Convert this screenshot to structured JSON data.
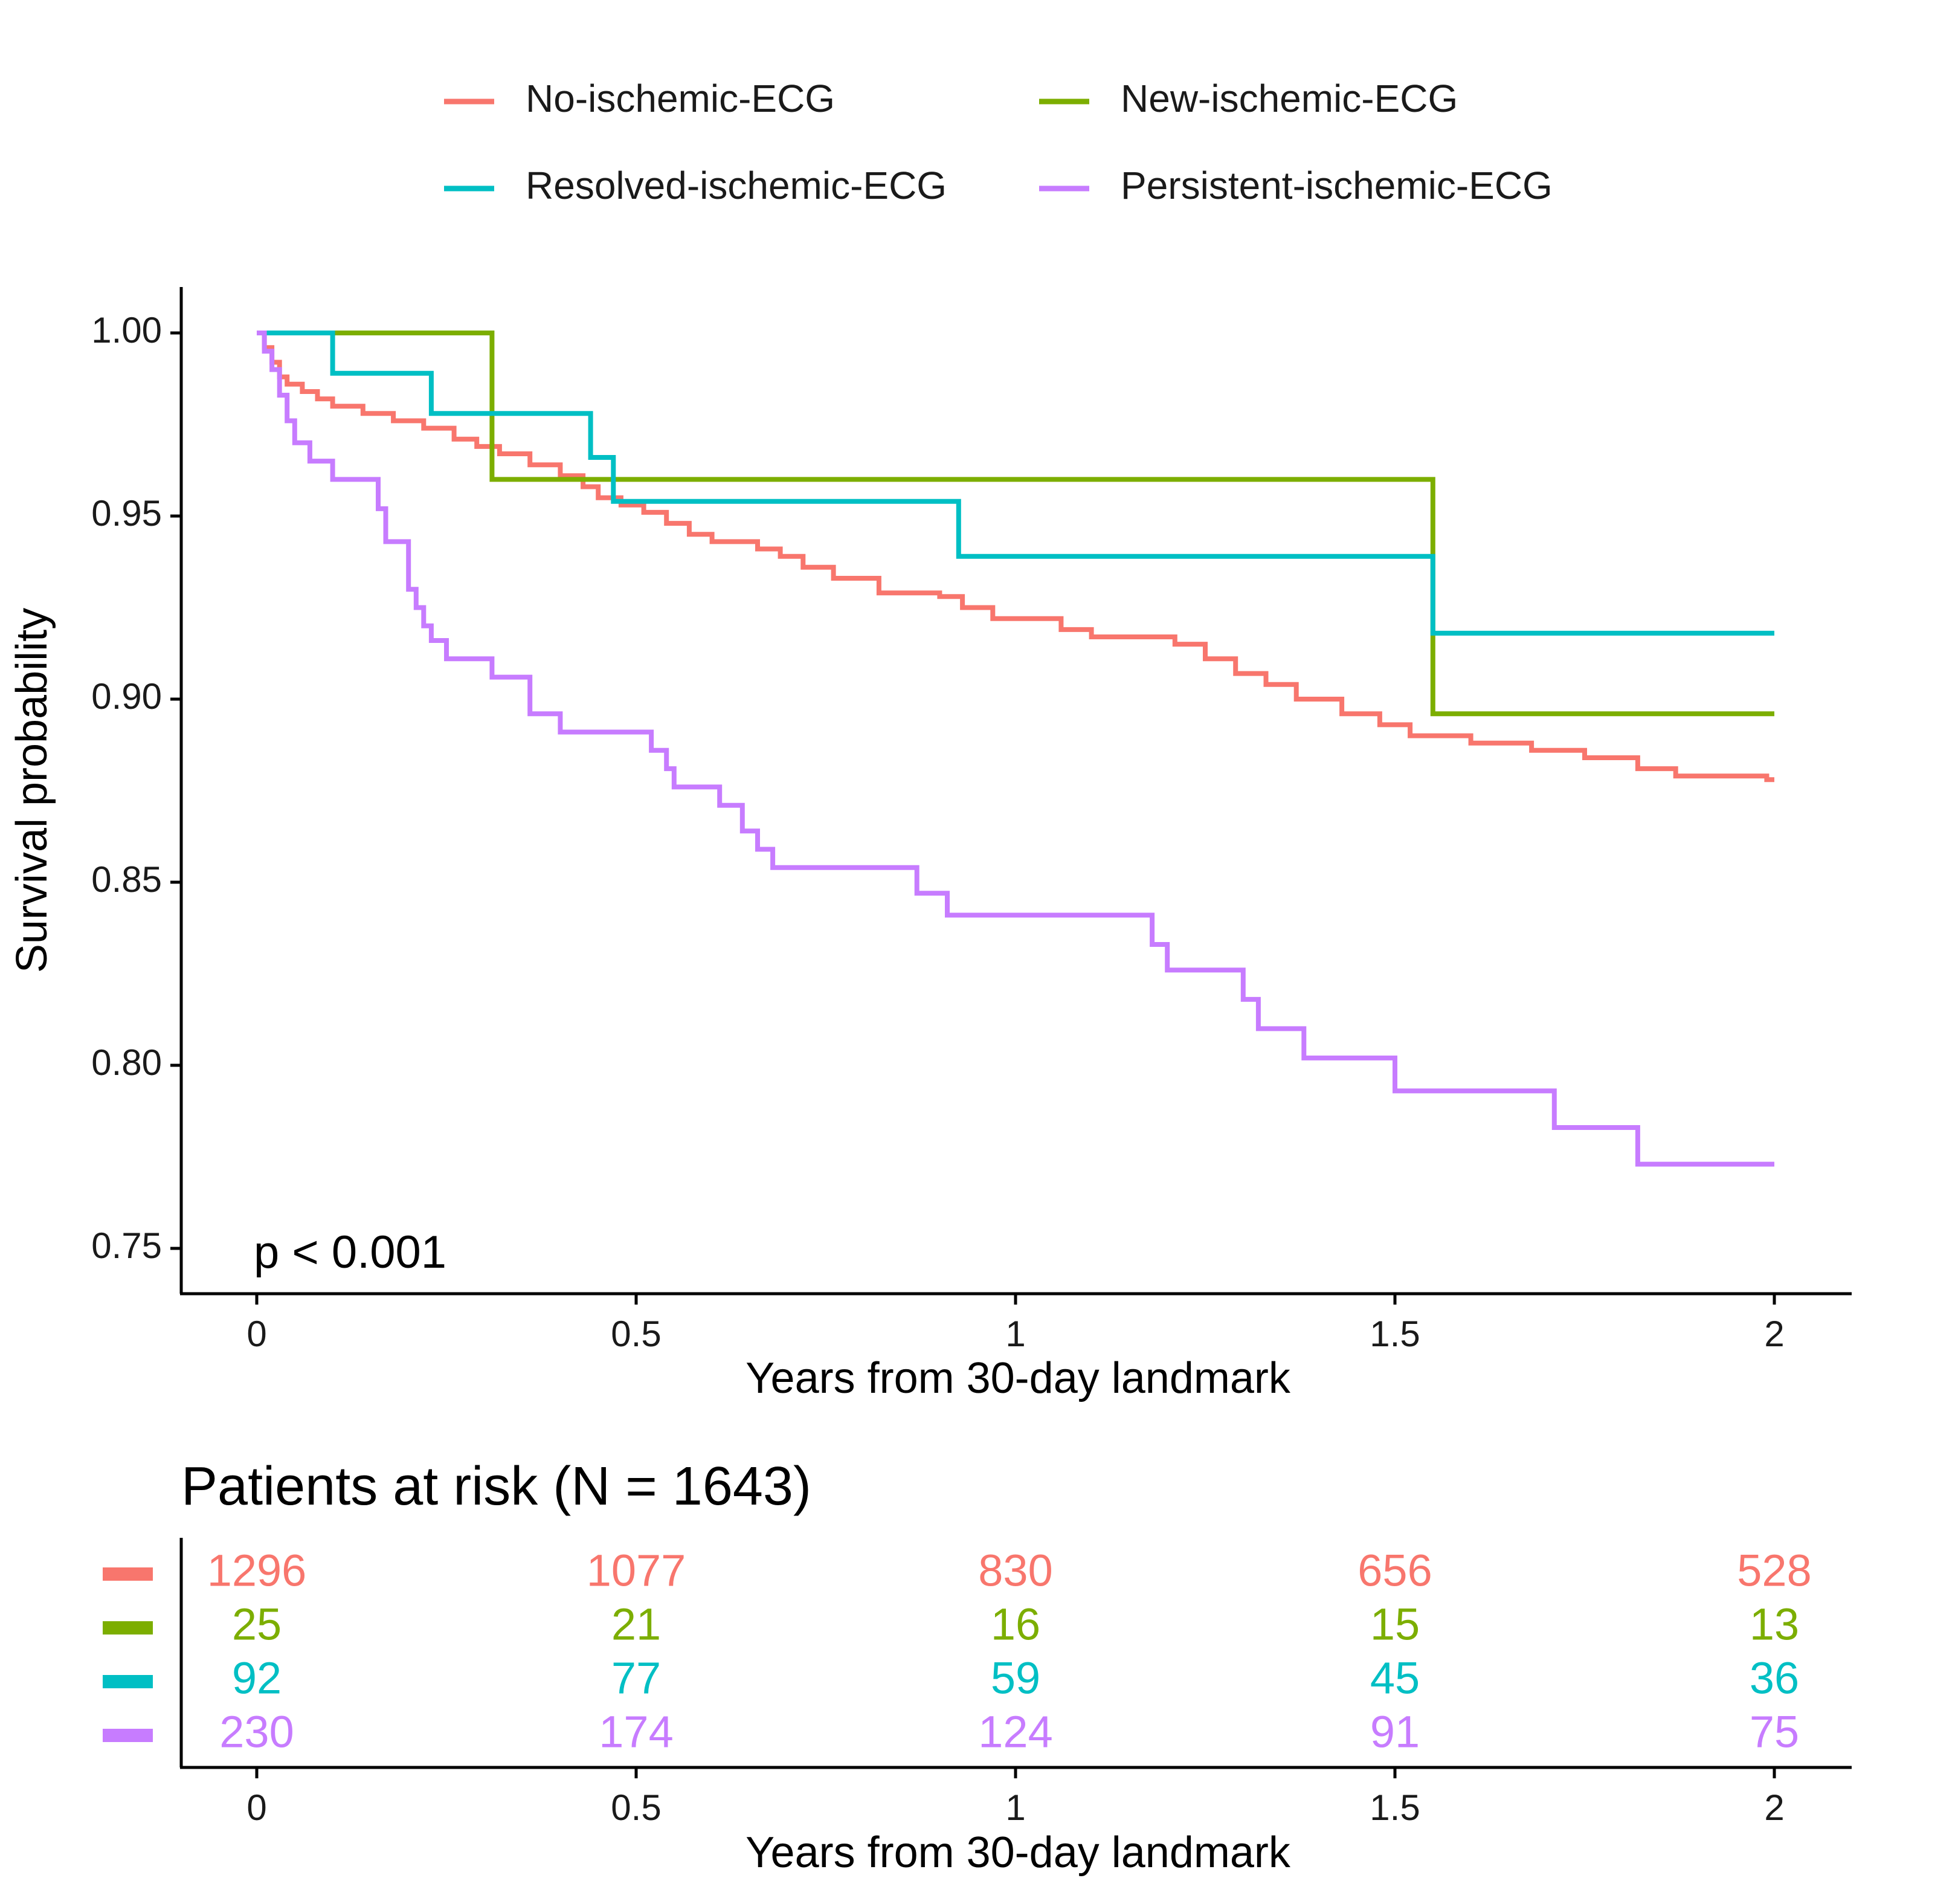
{
  "chart_data": {
    "type": "line",
    "subtype": "kaplan-meier",
    "legend_position": "top",
    "ylabel": "Survival probability",
    "xlabel": "Years from 30-day landmark",
    "xlim": [
      0,
      2
    ],
    "ylim": [
      0.75,
      1.0
    ],
    "x_ticks": [
      "0",
      "0.5",
      "1",
      "1.5",
      "2"
    ],
    "y_ticks": [
      "0.75",
      "0.80",
      "0.85",
      "0.90",
      "0.95",
      "1.00"
    ],
    "annotation": "p < 0.001",
    "series": [
      {
        "name": "No-ischemic-ECG",
        "color": "#F8766D",
        "points": [
          [
            0,
            1.0
          ],
          [
            0.01,
            0.996
          ],
          [
            0.02,
            0.992
          ],
          [
            0.03,
            0.988
          ],
          [
            0.04,
            0.986
          ],
          [
            0.06,
            0.984
          ],
          [
            0.08,
            0.982
          ],
          [
            0.1,
            0.98
          ],
          [
            0.14,
            0.978
          ],
          [
            0.18,
            0.976
          ],
          [
            0.22,
            0.974
          ],
          [
            0.26,
            0.971
          ],
          [
            0.29,
            0.969
          ],
          [
            0.32,
            0.967
          ],
          [
            0.36,
            0.964
          ],
          [
            0.4,
            0.961
          ],
          [
            0.43,
            0.958
          ],
          [
            0.45,
            0.955
          ],
          [
            0.48,
            0.953
          ],
          [
            0.51,
            0.951
          ],
          [
            0.54,
            0.948
          ],
          [
            0.57,
            0.945
          ],
          [
            0.6,
            0.943
          ],
          [
            0.66,
            0.941
          ],
          [
            0.69,
            0.939
          ],
          [
            0.72,
            0.936
          ],
          [
            0.76,
            0.933
          ],
          [
            0.82,
            0.929
          ],
          [
            0.9,
            0.928
          ],
          [
            0.93,
            0.925
          ],
          [
            0.97,
            0.922
          ],
          [
            1.06,
            0.919
          ],
          [
            1.1,
            0.917
          ],
          [
            1.21,
            0.915
          ],
          [
            1.25,
            0.911
          ],
          [
            1.29,
            0.907
          ],
          [
            1.33,
            0.904
          ],
          [
            1.37,
            0.9
          ],
          [
            1.43,
            0.896
          ],
          [
            1.48,
            0.893
          ],
          [
            1.52,
            0.89
          ],
          [
            1.6,
            0.888
          ],
          [
            1.68,
            0.886
          ],
          [
            1.75,
            0.884
          ],
          [
            1.82,
            0.881
          ],
          [
            1.87,
            0.879
          ],
          [
            1.99,
            0.878
          ],
          [
            2.0,
            0.878
          ]
        ]
      },
      {
        "name": "New-ischemic-ECG",
        "color": "#7CAE00",
        "points": [
          [
            0,
            1.0
          ],
          [
            0.31,
            1.0
          ],
          [
            0.31,
            0.96
          ],
          [
            1.55,
            0.96
          ],
          [
            1.55,
            0.896
          ],
          [
            2.0,
            0.896
          ]
        ]
      },
      {
        "name": "Resolved-ischemic-ECG",
        "color": "#00BFC4",
        "points": [
          [
            0,
            1.0
          ],
          [
            0.1,
            1.0
          ],
          [
            0.1,
            0.989
          ],
          [
            0.23,
            0.989
          ],
          [
            0.23,
            0.978
          ],
          [
            0.44,
            0.978
          ],
          [
            0.44,
            0.966
          ],
          [
            0.47,
            0.966
          ],
          [
            0.47,
            0.954
          ],
          [
            0.925,
            0.954
          ],
          [
            0.925,
            0.939
          ],
          [
            1.55,
            0.939
          ],
          [
            1.55,
            0.918
          ],
          [
            2.0,
            0.918
          ]
        ]
      },
      {
        "name": "Persistent-ischemic-ECG",
        "color": "#C77CFF",
        "points": [
          [
            0,
            1.0
          ],
          [
            0.01,
            0.995
          ],
          [
            0.02,
            0.99
          ],
          [
            0.03,
            0.983
          ],
          [
            0.04,
            0.976
          ],
          [
            0.05,
            0.97
          ],
          [
            0.07,
            0.965
          ],
          [
            0.1,
            0.96
          ],
          [
            0.16,
            0.952
          ],
          [
            0.17,
            0.943
          ],
          [
            0.2,
            0.938
          ],
          [
            0.2,
            0.93
          ],
          [
            0.21,
            0.925
          ],
          [
            0.22,
            0.92
          ],
          [
            0.23,
            0.916
          ],
          [
            0.25,
            0.911
          ],
          [
            0.31,
            0.906
          ],
          [
            0.36,
            0.896
          ],
          [
            0.4,
            0.891
          ],
          [
            0.52,
            0.886
          ],
          [
            0.54,
            0.881
          ],
          [
            0.55,
            0.876
          ],
          [
            0.61,
            0.871
          ],
          [
            0.64,
            0.864
          ],
          [
            0.66,
            0.859
          ],
          [
            0.68,
            0.854
          ],
          [
            0.87,
            0.847
          ],
          [
            0.91,
            0.841
          ],
          [
            1.18,
            0.833
          ],
          [
            1.2,
            0.826
          ],
          [
            1.3,
            0.818
          ],
          [
            1.32,
            0.81
          ],
          [
            1.38,
            0.802
          ],
          [
            1.5,
            0.793
          ],
          [
            1.71,
            0.783
          ],
          [
            1.82,
            0.773
          ],
          [
            2.0,
            0.773
          ]
        ]
      }
    ],
    "risk_table": {
      "title": "Patients at risk (N = 1643)",
      "xlabel": "Years from 30-day landmark",
      "times": [
        "0",
        "0.5",
        "1",
        "1.5",
        "2"
      ],
      "rows": [
        {
          "name": "No-ischemic-ECG",
          "color": "#F8766D",
          "values": [
            "1296",
            "1077",
            "830",
            "656",
            "528"
          ]
        },
        {
          "name": "New-ischemic-ECG",
          "color": "#7CAE00",
          "values": [
            "25",
            "21",
            "16",
            "15",
            "13"
          ]
        },
        {
          "name": "Resolved-ischemic-ECG",
          "color": "#00BFC4",
          "values": [
            "92",
            "77",
            "59",
            "45",
            "36"
          ]
        },
        {
          "name": "Persistent-ischemic-ECG",
          "color": "#C77CFF",
          "values": [
            "230",
            "174",
            "124",
            "91",
            "75"
          ]
        }
      ]
    }
  }
}
